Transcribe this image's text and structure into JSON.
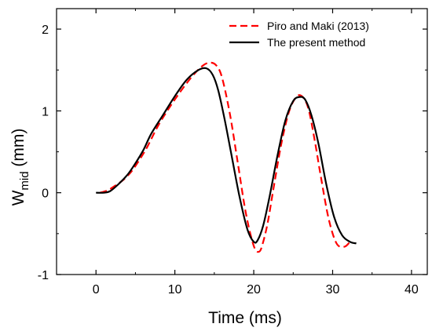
{
  "chart_data": {
    "type": "line",
    "xlabel": "Time (ms)",
    "ylabel_base": "W",
    "ylabel_sub": "mid",
    "ylabel_unit": " (mm)",
    "xlim": [
      -5,
      42
    ],
    "ylim": [
      -1,
      2.25
    ],
    "x_ticks": [
      0,
      10,
      20,
      30,
      40
    ],
    "y_ticks": [
      -1,
      0,
      1,
      2
    ],
    "grid": false,
    "legend_position": "top-right",
    "series": [
      {
        "name": "Piro and Maki (2013)",
        "color": "#ff0000",
        "dash": "dashed",
        "x": [
          0.5,
          1.5,
          2.5,
          3.5,
          4.5,
          5.5,
          6.5,
          8,
          10,
          12,
          13.5,
          14.5,
          15.3,
          16,
          17,
          18,
          19,
          20,
          20.7,
          21.2,
          21.8,
          22.5,
          23.5,
          24.5,
          25.5,
          26.3,
          27,
          27.8,
          28.5,
          29.5,
          30.5,
          31.5,
          32.2
        ],
        "y": [
          0.0,
          0.03,
          0.09,
          0.16,
          0.26,
          0.4,
          0.56,
          0.84,
          1.14,
          1.4,
          1.55,
          1.59,
          1.55,
          1.4,
          0.95,
          0.35,
          -0.25,
          -0.65,
          -0.72,
          -0.6,
          -0.35,
          0.05,
          0.6,
          1.0,
          1.18,
          1.16,
          1.0,
          0.6,
          0.2,
          -0.32,
          -0.62,
          -0.66,
          -0.6
        ]
      },
      {
        "name": "The present method",
        "color": "#000000",
        "dash": "solid",
        "x": [
          0,
          1,
          1.8,
          2.8,
          4,
          5,
          6,
          7,
          8.5,
          10,
          11.5,
          13,
          14,
          14.8,
          15.5,
          16.3,
          17.2,
          18.2,
          19.2,
          20,
          20.5,
          21.2,
          22,
          23,
          24,
          25,
          25.8,
          26.5,
          27.3,
          28.2,
          29.2,
          30.2,
          31.2,
          32.2,
          33
        ],
        "y": [
          0.0,
          0.0,
          0.02,
          0.1,
          0.22,
          0.36,
          0.52,
          0.72,
          0.95,
          1.18,
          1.38,
          1.5,
          1.52,
          1.44,
          1.25,
          0.9,
          0.45,
          -0.05,
          -0.45,
          -0.6,
          -0.58,
          -0.4,
          -0.05,
          0.45,
          0.88,
          1.12,
          1.17,
          1.14,
          0.95,
          0.6,
          0.1,
          -0.3,
          -0.52,
          -0.6,
          -0.62
        ]
      }
    ]
  }
}
